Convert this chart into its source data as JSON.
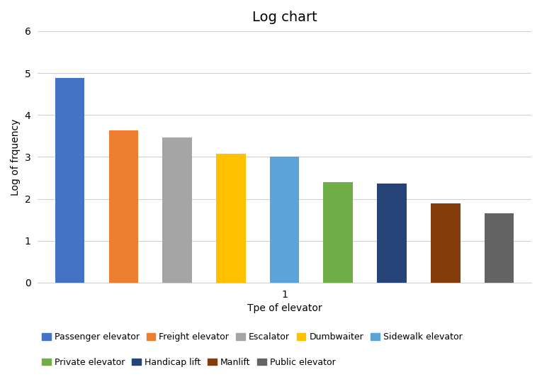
{
  "title": "Log chart",
  "xlabel": "Tpe of elevator",
  "ylabel": "Log of frquency",
  "xtick_label": "1",
  "xtick_pos": 4,
  "ylim": [
    0,
    6
  ],
  "yticks": [
    0,
    1,
    2,
    3,
    4,
    5,
    6
  ],
  "categories": [
    "Passenger elevator",
    "Freight elevator",
    "Escalator",
    "Dumbwaiter",
    "Sidewalk elevator",
    "Private elevator",
    "Handicap lift",
    "Manlift",
    "Public elevator"
  ],
  "values": [
    4.88,
    3.63,
    3.47,
    3.07,
    3.0,
    2.4,
    2.36,
    1.9,
    1.66
  ],
  "colors": [
    "#4472C4",
    "#ED7D31",
    "#A5A5A5",
    "#FFC000",
    "#5BA3D9",
    "#70AD47",
    "#264478",
    "#843C0C",
    "#636363"
  ],
  "legend_row1": [
    "Passenger elevator",
    "Freight elevator",
    "Escalator",
    "Dumbwaiter",
    "Sidewalk elevator"
  ],
  "legend_row2": [
    "Private elevator",
    "Handicap lift",
    "Manlift",
    "Public elevator"
  ],
  "background_color": "#FFFFFF",
  "title_fontsize": 14,
  "label_fontsize": 10,
  "tick_fontsize": 10,
  "legend_fontsize": 9,
  "bar_width": 0.55
}
